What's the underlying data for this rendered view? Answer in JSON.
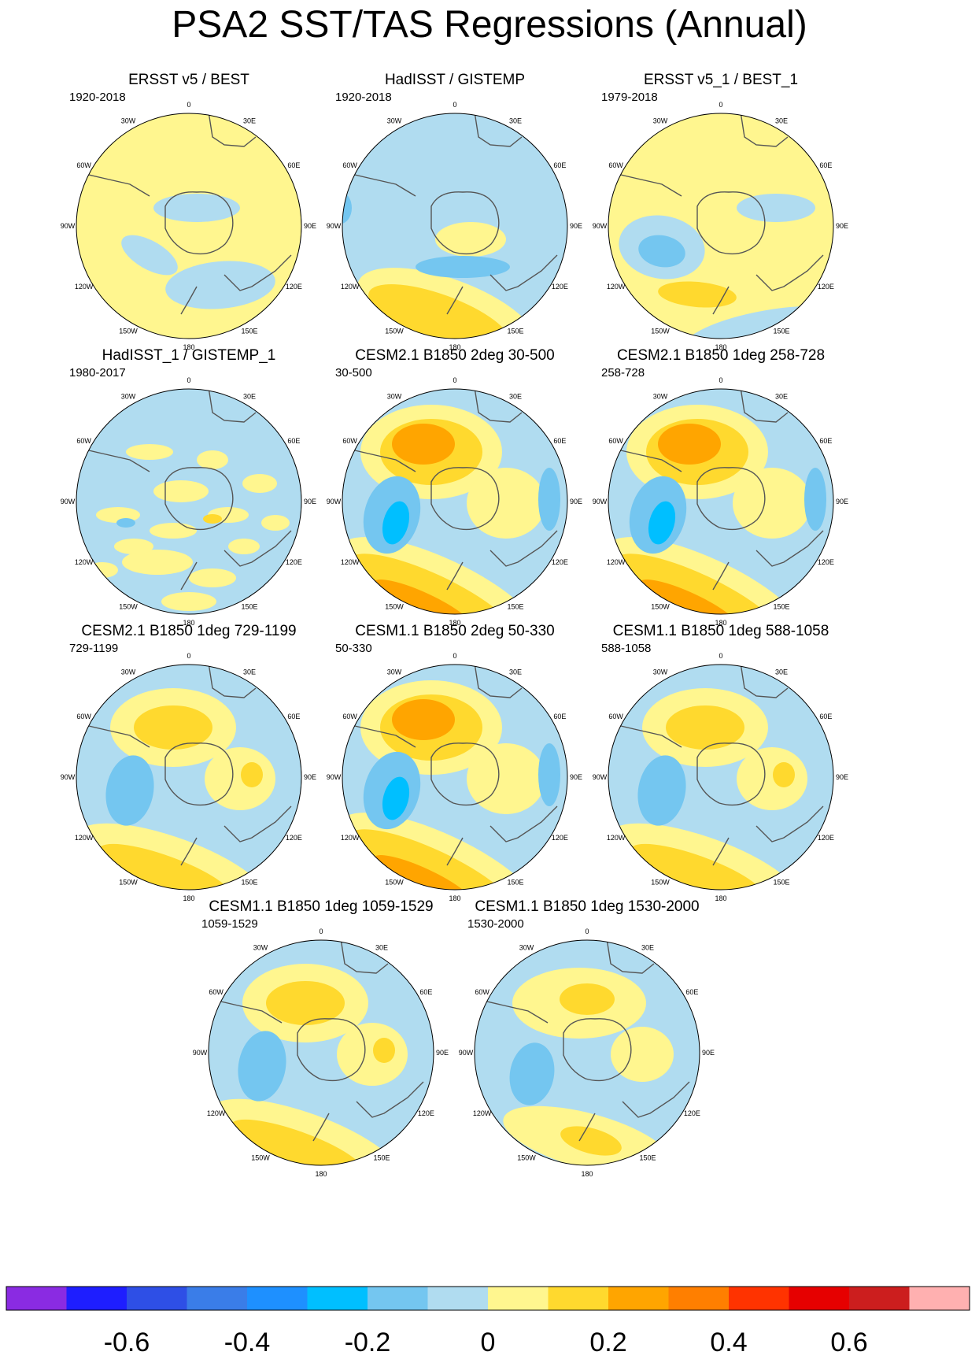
{
  "figure": {
    "title": "PSA2 SST/TAS Regressions (Annual)"
  },
  "lon_labels": [
    "0",
    "30E",
    "60E",
    "90E",
    "120E",
    "150E",
    "180",
    "150W",
    "120W",
    "90W",
    "60W",
    "30W"
  ],
  "panels": [
    {
      "title": "ERSST v5 / BEST",
      "period": "1920-2018",
      "pattern": "obs_ersst"
    },
    {
      "title": "HadISST / GISTEMP",
      "period": "1920-2018",
      "pattern": "obs_hadisst"
    },
    {
      "title": "ERSST v5_1 / BEST_1",
      "period": "1979-2018",
      "pattern": "obs_recent"
    },
    {
      "title": "HadISST_1 / GISTEMP_1",
      "period": "1980-2017",
      "pattern": "obs_noisy"
    },
    {
      "title": "CESM2.1 B1850 2deg 30-500",
      "period": "30-500",
      "pattern": "model_strong"
    },
    {
      "title": "CESM2.1 B1850 1deg 258-728",
      "period": "258-728",
      "pattern": "model_strong"
    },
    {
      "title": "CESM2.1 B1850 1deg 729-1199",
      "period": "729-1199",
      "pattern": "model_medium"
    },
    {
      "title": "CESM1.1 B1850 2deg 50-330",
      "period": "50-330",
      "pattern": "model_strong"
    },
    {
      "title": "CESM1.1 B1850 1deg 588-1058",
      "period": "588-1058",
      "pattern": "model_medium"
    },
    {
      "title": "CESM1.1 B1850 1deg 1059-1529",
      "period": "1059-1529",
      "pattern": "model_medium"
    },
    {
      "title": "CESM1.1 B1850 1deg 1530-2000",
      "period": "1530-2000",
      "pattern": "model_weak"
    }
  ],
  "colorbar": {
    "colors": [
      "#8a2be2",
      "#1e1eff",
      "#2e4fe6",
      "#3a7de8",
      "#1e90ff",
      "#00bfff",
      "#74c6f0",
      "#b0dcf0",
      "#fff68f",
      "#ffd92e",
      "#ffa500",
      "#ff7f00",
      "#ff3300",
      "#e60000",
      "#cc1e1e",
      "#ffb0b0"
    ],
    "tick_labels": [
      "-0.6",
      "-0.4",
      "-0.2",
      "0",
      "0.2",
      "0.4",
      "0.6"
    ]
  }
}
